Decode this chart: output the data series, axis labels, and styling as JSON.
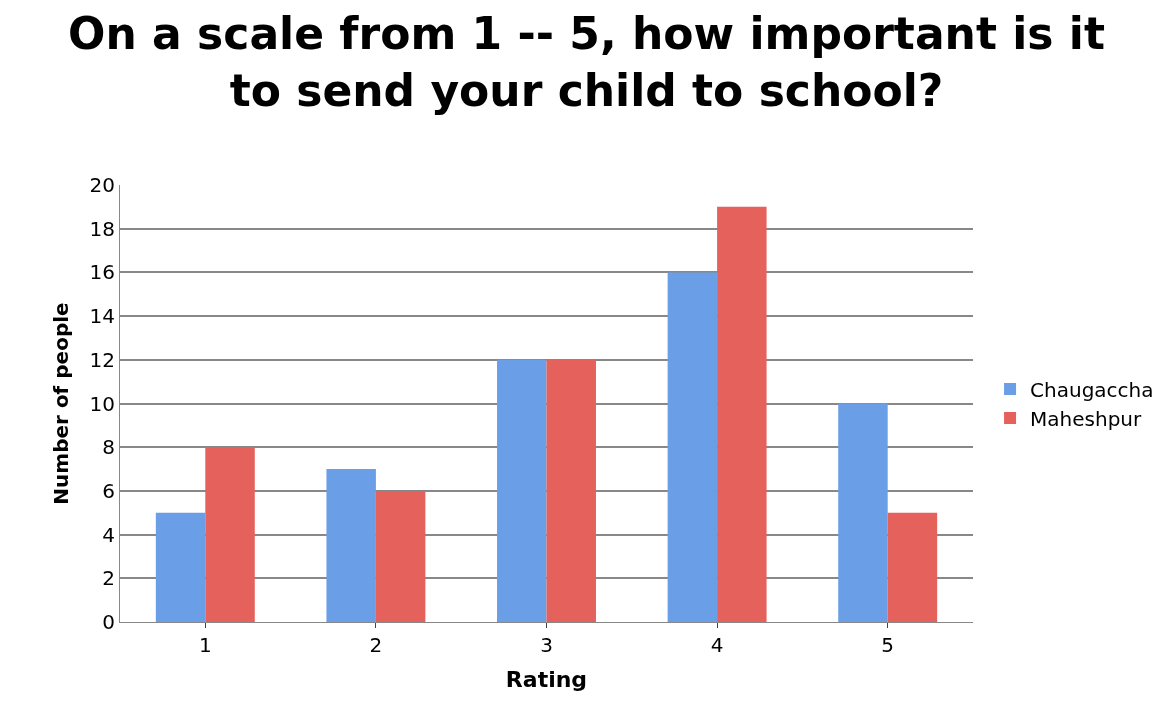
{
  "chart_data": {
    "type": "bar",
    "title": "On a scale from 1 -- 5, how important is it to send your child to school?",
    "xlabel": "Rating",
    "ylabel": "Number of people",
    "categories": [
      "1",
      "2",
      "3",
      "4",
      "5"
    ],
    "series": [
      {
        "name": "Chaugaccha",
        "color": "#6a9ee6",
        "values": [
          5,
          7,
          12,
          16,
          10
        ]
      },
      {
        "name": "Maheshpur",
        "color": "#e5615c",
        "values": [
          8,
          6,
          12,
          19,
          5
        ]
      }
    ],
    "ylim": [
      0,
      20
    ],
    "yticks": [
      0,
      2,
      4,
      6,
      8,
      10,
      12,
      14,
      16,
      18,
      20
    ],
    "grid": "y",
    "legend": "right"
  }
}
